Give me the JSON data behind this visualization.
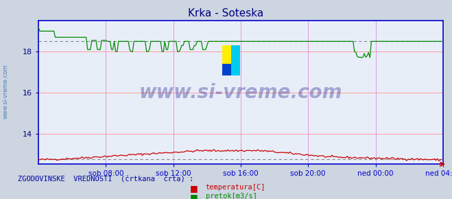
{
  "title": "Krka - Soteska",
  "title_color": "#000080",
  "bg_color": "#ccd5e0",
  "plot_bg_color": "#e8eef8",
  "grid_color_h": "#ff9999",
  "grid_color_v": "#dd99dd",
  "x_labels": [
    "sob 08:00",
    "sob 12:00",
    "sob 16:00",
    "sob 20:00",
    "ned 00:00",
    "ned 04:00"
  ],
  "x_label_color": "#000080",
  "y_ticks": [
    14,
    16,
    18
  ],
  "y_tick_color": "#000080",
  "y_lim": [
    12.5,
    19.5
  ],
  "x_lim": [
    0,
    288
  ],
  "watermark": "www.si-vreme.com",
  "watermark_color": "#000080",
  "watermark_alpha": 0.3,
  "footer_text": "ZGODOVINSKE  VREDNOSTI  (črtkana  črta) :",
  "footer_color": "#0000aa",
  "legend_items": [
    "temperatura[C]",
    "pretok[m3/s]"
  ],
  "legend_colors": [
    "#cc0000",
    "#008800"
  ],
  "temp_color": "#cc0000",
  "flow_color": "#008800",
  "hist_temp_color": "#888888",
  "hist_flow_color": "#888888",
  "axis_color": "#0000cc",
  "arrow_color": "#cc0000",
  "n_points": 288,
  "x_tick_positions": [
    48,
    96,
    144,
    192,
    240,
    288
  ],
  "logo_colors": [
    "#ffee00",
    "#0044cc",
    "#00ccee"
  ]
}
